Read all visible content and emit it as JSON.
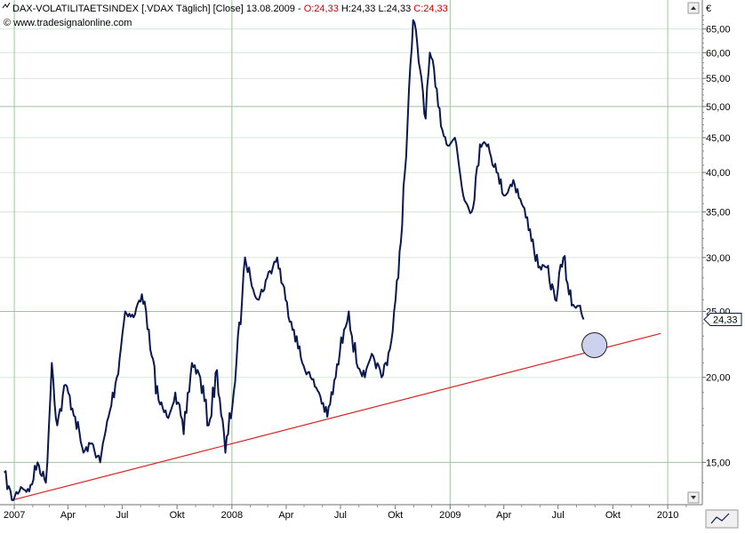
{
  "header": {
    "title_prefix": "DAX-VOLATILITAETSINDEX [.VDAX  Täglich] [Close] 13.08.2009 - ",
    "open": "O:24,33",
    "high": "H:24,33",
    "low": "L:24,33",
    "close": "C:24,33",
    "copyright": "© www.tradesignalonline.com",
    "currency": "€"
  },
  "colors": {
    "series": "#0a1850",
    "trendline": "#dd2222",
    "grid_major": "#9fc49f",
    "grid_minor": "#d6e8d6",
    "highlight_fill": "#ccd2ee",
    "highlight_stroke": "#222222"
  },
  "chart_data": {
    "type": "line",
    "title": "DAX-VOLATILITAETSINDEX",
    "x_axis_labels": [
      "2007",
      "Apr",
      "Jul",
      "Okt",
      "2008",
      "Apr",
      "Jul",
      "Okt",
      "2009",
      "Apr",
      "Jul",
      "Okt",
      "2010"
    ],
    "x_axis_dates": [
      "2007-01-01",
      "2007-04-01",
      "2007-07-01",
      "2007-10-01",
      "2008-01-01",
      "2008-04-01",
      "2008-07-01",
      "2008-10-01",
      "2009-01-01",
      "2009-04-01",
      "2009-07-01",
      "2009-10-01",
      "2010-01-01"
    ],
    "y_scale": "log",
    "ylim": [
      13,
      70
    ],
    "y_ticks": [
      "15,00",
      "20,00",
      "25,00",
      "30,00",
      "35,00",
      "40,00",
      "45,00",
      "50,00",
      "55,00",
      "60,00",
      "65,00"
    ],
    "y_tick_values": [
      15,
      20,
      25,
      30,
      35,
      40,
      45,
      50,
      55,
      60,
      65
    ],
    "last_value_label": "24,33",
    "last_value": 24.33,
    "series": [
      {
        "x": [
          "2006-12-15",
          "2006-12-28",
          "2007-01-12",
          "2007-01-26",
          "2007-02-09",
          "2007-02-23",
          "2007-03-05",
          "2007-03-14",
          "2007-03-28",
          "2007-04-13",
          "2007-04-27",
          "2007-05-11",
          "2007-05-25",
          "2007-06-08",
          "2007-06-22",
          "2007-07-06",
          "2007-07-20",
          "2007-08-03",
          "2007-08-10",
          "2007-08-17",
          "2007-08-31",
          "2007-09-14",
          "2007-09-28",
          "2007-10-12",
          "2007-10-26",
          "2007-11-09",
          "2007-11-23",
          "2007-12-07",
          "2007-12-21",
          "2008-01-04",
          "2008-01-18",
          "2008-01-23",
          "2008-02-01",
          "2008-02-15",
          "2008-02-29",
          "2008-03-17",
          "2008-03-31",
          "2008-04-14",
          "2008-04-28",
          "2008-05-12",
          "2008-05-26",
          "2008-06-09",
          "2008-06-23",
          "2008-07-07",
          "2008-07-15",
          "2008-07-28",
          "2008-08-11",
          "2008-08-25",
          "2008-09-08",
          "2008-09-22",
          "2008-10-06",
          "2008-10-17",
          "2008-10-31",
          "2008-11-14",
          "2008-11-21",
          "2008-11-28",
          "2008-12-12",
          "2008-12-26",
          "2009-01-09",
          "2009-01-23",
          "2009-02-06",
          "2009-02-20",
          "2009-03-06",
          "2009-03-20",
          "2009-04-03",
          "2009-04-17",
          "2009-05-01",
          "2009-05-15",
          "2009-05-29",
          "2009-06-12",
          "2009-06-26",
          "2009-07-10",
          "2009-07-24",
          "2009-08-07",
          "2009-08-13"
        ],
        "y": [
          14.5,
          13.2,
          13.8,
          13.6,
          15.0,
          14.0,
          21.0,
          17.0,
          19.5,
          17.5,
          15.5,
          16.0,
          15.0,
          17.5,
          20.0,
          25.0,
          24.5,
          26.5,
          25.0,
          22.0,
          18.5,
          17.5,
          19.0,
          16.5,
          21.0,
          20.0,
          17.0,
          20.5,
          15.5,
          19.0,
          26.0,
          30.0,
          28.0,
          26.0,
          28.0,
          30.0,
          26.0,
          23.5,
          21.0,
          20.0,
          19.0,
          17.5,
          20.0,
          23.5,
          25.0,
          21.0,
          20.0,
          21.5,
          20.0,
          22.0,
          28.0,
          40.0,
          67.0,
          55.0,
          48.0,
          60.0,
          50.0,
          44.0,
          45.0,
          37.0,
          35.0,
          44.0,
          44.0,
          40.0,
          37.0,
          39.0,
          36.0,
          33.0,
          29.0,
          29.0,
          26.0,
          30.0,
          25.5,
          25.5,
          24.33
        ]
      }
    ],
    "trendline": {
      "x": [
        "2006-12-28",
        "2009-12-20"
      ],
      "y": [
        13.2,
        23.2
      ]
    },
    "highlight": {
      "x": "2009-08-31",
      "y": 22.3
    }
  }
}
